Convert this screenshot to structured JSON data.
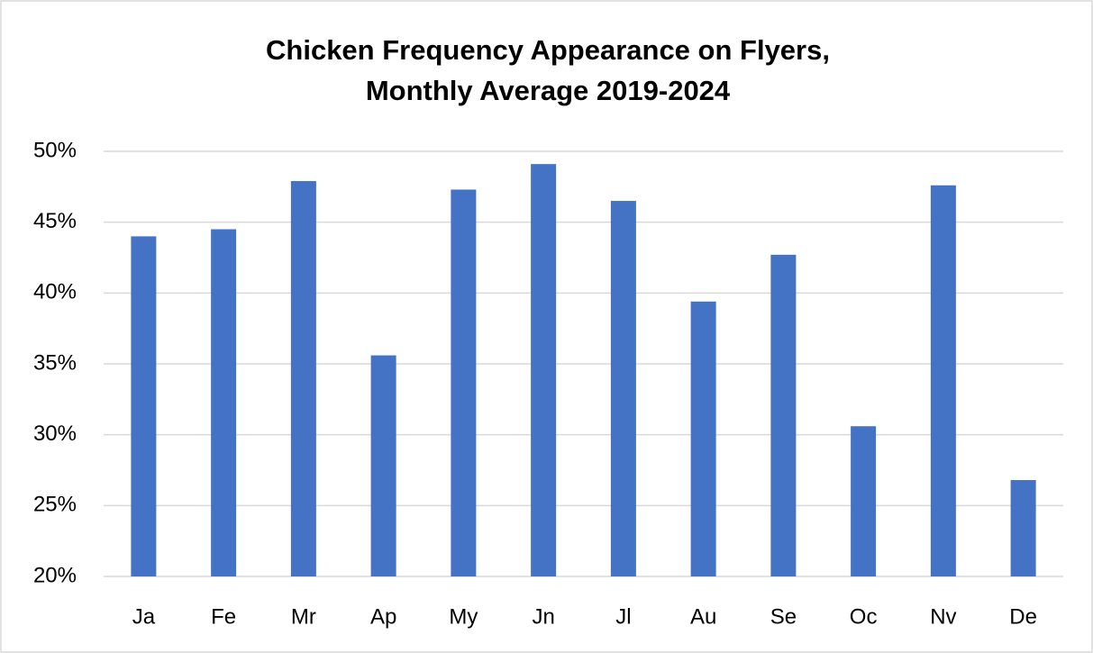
{
  "chart_data": {
    "type": "bar",
    "title": [
      "Chicken Frequency Appearance on Flyers,",
      "Monthly Average 2019-2024"
    ],
    "categories": [
      "Ja",
      "Fe",
      "Mr",
      "Ap",
      "My",
      "Jn",
      "Jl",
      "Au",
      "Se",
      "Oc",
      "Nv",
      "De"
    ],
    "values": [
      44.0,
      44.5,
      47.9,
      35.6,
      47.3,
      49.1,
      46.5,
      39.4,
      42.7,
      30.6,
      47.6,
      26.8
    ],
    "color": "#4472c4",
    "ylim": [
      20,
      50
    ],
    "yticks": [
      {
        "value": 20,
        "label": "20%"
      },
      {
        "value": 25,
        "label": "25%"
      },
      {
        "value": 30,
        "label": "30%"
      },
      {
        "value": 35,
        "label": "35%"
      },
      {
        "value": 40,
        "label": "40%"
      },
      {
        "value": 45,
        "label": "45%"
      },
      {
        "value": 50,
        "label": "50%"
      }
    ],
    "grid": true
  }
}
